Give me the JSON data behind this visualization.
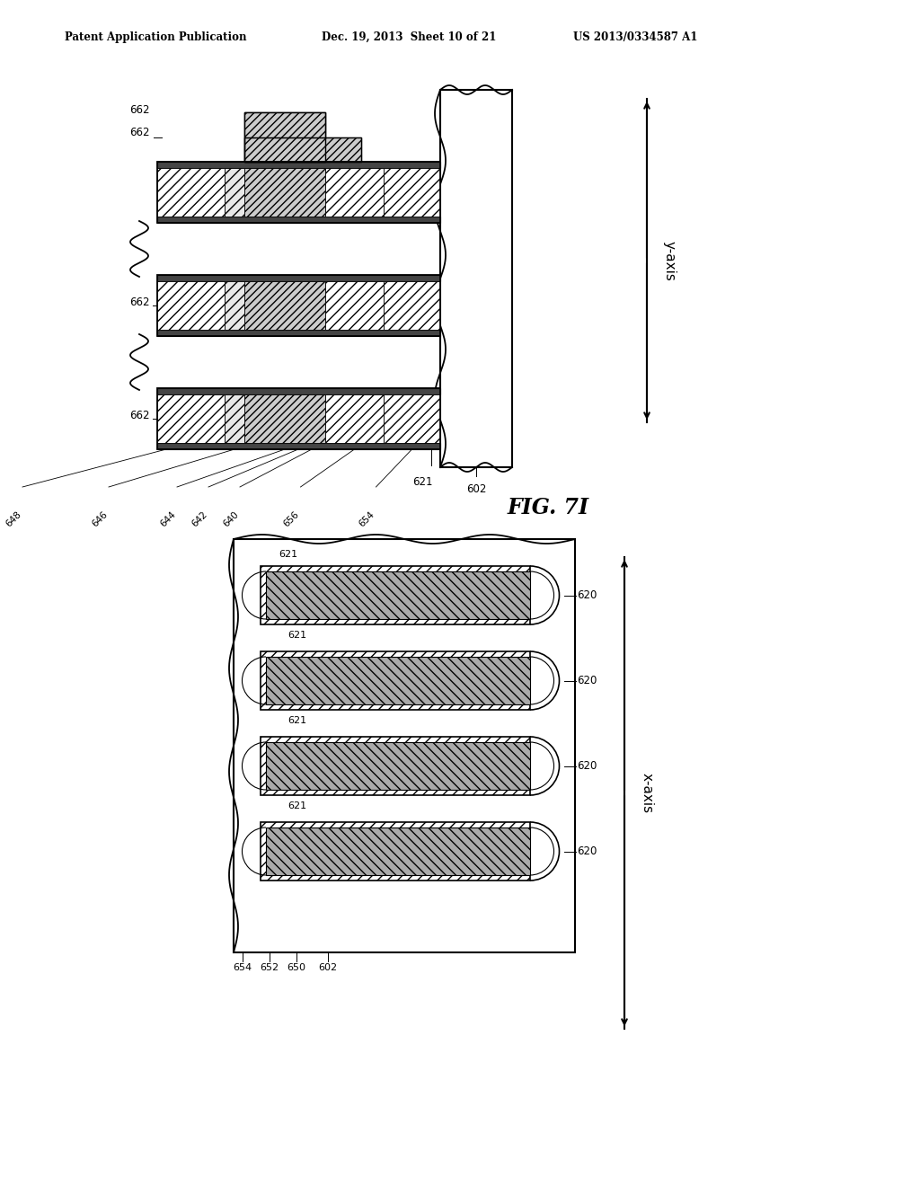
{
  "header_left": "Patent Application Publication",
  "header_mid": "Dec. 19, 2013  Sheet 10 of 21",
  "header_right": "US 2013/0334587 A1",
  "fig_label": "FIG. 7I",
  "background_color": "#ffffff",
  "top_diagram": {
    "y_axis_label": "y-axis",
    "labels": {
      "662": "662",
      "648": "648",
      "646": "646",
      "644": "644",
      "642": "642",
      "640": "640",
      "656": "656",
      "654": "654",
      "621": "621",
      "602": "602"
    }
  },
  "bottom_diagram": {
    "x_axis_label": "x-axis",
    "labels": {
      "620": "620",
      "621": "621",
      "602": "602",
      "650": "650",
      "652": "652",
      "654": "654"
    }
  }
}
